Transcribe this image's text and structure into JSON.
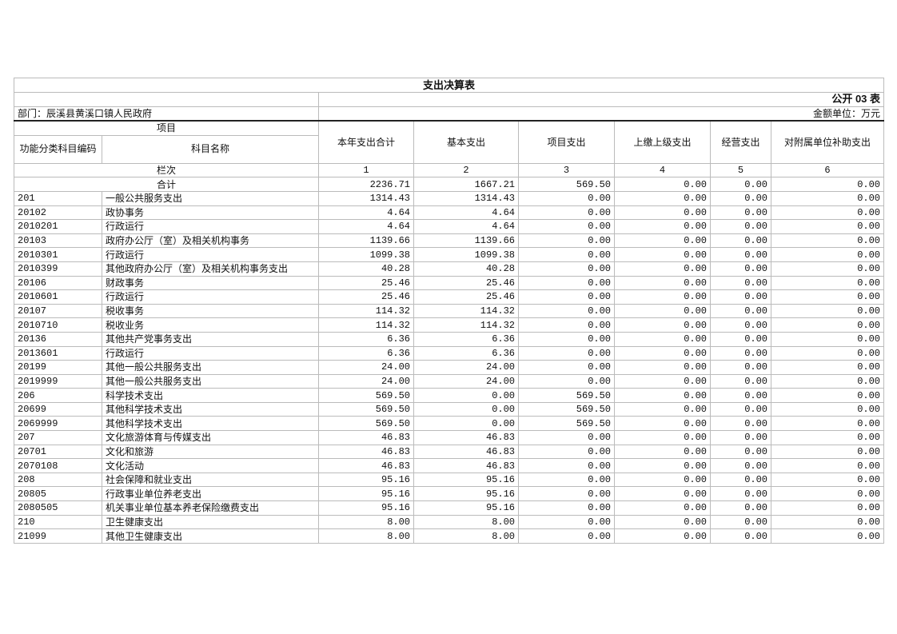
{
  "title": "支出决算表",
  "form_no": "公开 03 表",
  "department": "部门：辰溪县黄溪口镇人民政府",
  "unit": "金额单位：万元",
  "headers": {
    "item": "项目",
    "code": "功能分类科目编码",
    "name": "科目名称",
    "cols": [
      "本年支出合计",
      "基本支出",
      "项目支出",
      "上缴上级支出",
      "经营支出",
      "对附属单位补助支出"
    ]
  },
  "column_index_label": "栏次",
  "column_index": [
    "1",
    "2",
    "3",
    "4",
    "5",
    "6"
  ],
  "total": {
    "label": "合计",
    "values": [
      "2236.71",
      "1667.21",
      "569.50",
      "0.00",
      "0.00",
      "0.00"
    ]
  },
  "rows": [
    {
      "code": "201",
      "name": "一般公共服务支出",
      "values": [
        "1314.43",
        "1314.43",
        "0.00",
        "0.00",
        "0.00",
        "0.00"
      ]
    },
    {
      "code": "20102",
      "name": "政协事务",
      "values": [
        "4.64",
        "4.64",
        "0.00",
        "0.00",
        "0.00",
        "0.00"
      ]
    },
    {
      "code": "2010201",
      "name": "行政运行",
      "values": [
        "4.64",
        "4.64",
        "0.00",
        "0.00",
        "0.00",
        "0.00"
      ]
    },
    {
      "code": "20103",
      "name": "政府办公厅（室）及相关机构事务",
      "values": [
        "1139.66",
        "1139.66",
        "0.00",
        "0.00",
        "0.00",
        "0.00"
      ]
    },
    {
      "code": "2010301",
      "name": "行政运行",
      "values": [
        "1099.38",
        "1099.38",
        "0.00",
        "0.00",
        "0.00",
        "0.00"
      ]
    },
    {
      "code": "2010399",
      "name": "其他政府办公厅（室）及相关机构事务支出",
      "values": [
        "40.28",
        "40.28",
        "0.00",
        "0.00",
        "0.00",
        "0.00"
      ]
    },
    {
      "code": "20106",
      "name": "财政事务",
      "values": [
        "25.46",
        "25.46",
        "0.00",
        "0.00",
        "0.00",
        "0.00"
      ]
    },
    {
      "code": "2010601",
      "name": "行政运行",
      "values": [
        "25.46",
        "25.46",
        "0.00",
        "0.00",
        "0.00",
        "0.00"
      ]
    },
    {
      "code": "20107",
      "name": "税收事务",
      "values": [
        "114.32",
        "114.32",
        "0.00",
        "0.00",
        "0.00",
        "0.00"
      ]
    },
    {
      "code": "2010710",
      "name": "税收业务",
      "values": [
        "114.32",
        "114.32",
        "0.00",
        "0.00",
        "0.00",
        "0.00"
      ]
    },
    {
      "code": "20136",
      "name": "其他共产党事务支出",
      "values": [
        "6.36",
        "6.36",
        "0.00",
        "0.00",
        "0.00",
        "0.00"
      ]
    },
    {
      "code": "2013601",
      "name": "行政运行",
      "values": [
        "6.36",
        "6.36",
        "0.00",
        "0.00",
        "0.00",
        "0.00"
      ]
    },
    {
      "code": "20199",
      "name": "其他一般公共服务支出",
      "values": [
        "24.00",
        "24.00",
        "0.00",
        "0.00",
        "0.00",
        "0.00"
      ]
    },
    {
      "code": "2019999",
      "name": "其他一般公共服务支出",
      "values": [
        "24.00",
        "24.00",
        "0.00",
        "0.00",
        "0.00",
        "0.00"
      ]
    },
    {
      "code": "206",
      "name": "科学技术支出",
      "values": [
        "569.50",
        "0.00",
        "569.50",
        "0.00",
        "0.00",
        "0.00"
      ]
    },
    {
      "code": "20699",
      "name": "其他科学技术支出",
      "values": [
        "569.50",
        "0.00",
        "569.50",
        "0.00",
        "0.00",
        "0.00"
      ]
    },
    {
      "code": "2069999",
      "name": "其他科学技术支出",
      "values": [
        "569.50",
        "0.00",
        "569.50",
        "0.00",
        "0.00",
        "0.00"
      ]
    },
    {
      "code": "207",
      "name": "文化旅游体育与传媒支出",
      "values": [
        "46.83",
        "46.83",
        "0.00",
        "0.00",
        "0.00",
        "0.00"
      ]
    },
    {
      "code": "20701",
      "name": "文化和旅游",
      "values": [
        "46.83",
        "46.83",
        "0.00",
        "0.00",
        "0.00",
        "0.00"
      ]
    },
    {
      "code": "2070108",
      "name": "文化活动",
      "values": [
        "46.83",
        "46.83",
        "0.00",
        "0.00",
        "0.00",
        "0.00"
      ]
    },
    {
      "code": "208",
      "name": "社会保障和就业支出",
      "values": [
        "95.16",
        "95.16",
        "0.00",
        "0.00",
        "0.00",
        "0.00"
      ]
    },
    {
      "code": "20805",
      "name": "行政事业单位养老支出",
      "values": [
        "95.16",
        "95.16",
        "0.00",
        "0.00",
        "0.00",
        "0.00"
      ]
    },
    {
      "code": "2080505",
      "name": "机关事业单位基本养老保险缴费支出",
      "values": [
        "95.16",
        "95.16",
        "0.00",
        "0.00",
        "0.00",
        "0.00"
      ]
    },
    {
      "code": "210",
      "name": "卫生健康支出",
      "values": [
        "8.00",
        "8.00",
        "0.00",
        "0.00",
        "0.00",
        "0.00"
      ]
    },
    {
      "code": "21099",
      "name": "其他卫生健康支出",
      "values": [
        "8.00",
        "8.00",
        "0.00",
        "0.00",
        "0.00",
        "0.00"
      ]
    }
  ]
}
